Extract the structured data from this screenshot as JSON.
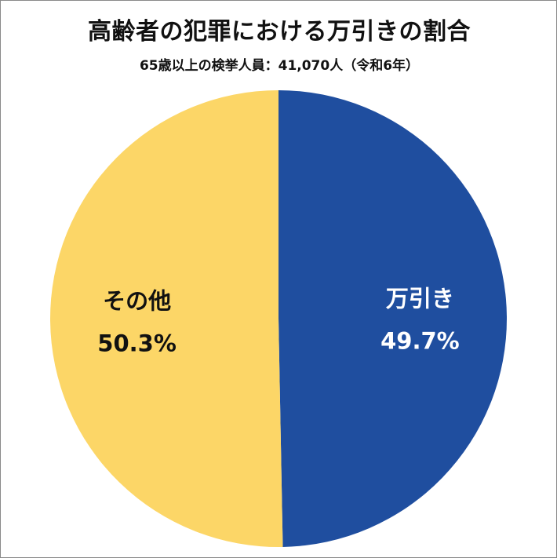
{
  "chart_data": {
    "type": "pie",
    "title": "高齢者の犯罪における万引きの割合",
    "subtitle": "65歳以上の検挙人員：41,070人（令和6年）",
    "slices": [
      {
        "label": "万引き",
        "value": 49.7,
        "display": "49.7%",
        "color": "#1f4e9f",
        "label_color": "#ffffff"
      },
      {
        "label": "その他",
        "value": 50.3,
        "display": "50.3%",
        "color": "#fcd667",
        "label_color": "#111111"
      }
    ],
    "start": "12 o'clock",
    "direction": "clockwise",
    "legend": "none"
  }
}
